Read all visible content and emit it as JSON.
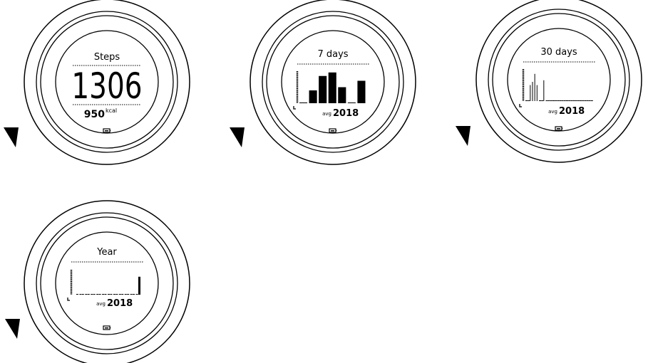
{
  "colors": {
    "ink": "#000000",
    "background": "#ffffff"
  },
  "watches": [
    {
      "screen": "steps",
      "title": "Steps",
      "value": "1306",
      "sub_value": "950",
      "sub_unit": "kcal",
      "icon": "battery-icon"
    },
    {
      "screen": "chart",
      "title": "7 days",
      "avg_label": "avg",
      "avg_value": "2018",
      "icon": "battery-icon",
      "chart_data": {
        "type": "bar",
        "values": [
          0,
          0.4,
          0.85,
          0.96,
          0.5,
          0,
          0.7
        ]
      }
    },
    {
      "screen": "chart",
      "title": "30 days",
      "avg_label": "avg",
      "avg_value": "2018",
      "icon": "battery-icon",
      "chart_data": {
        "type": "bar",
        "values": [
          0,
          0,
          0.5,
          0.6,
          0.85,
          0.5,
          0,
          0,
          0.65,
          0,
          0,
          0,
          0,
          0,
          0,
          0,
          0,
          0,
          0,
          0,
          0,
          0,
          0,
          0,
          0,
          0,
          0,
          0,
          0,
          0
        ]
      }
    },
    {
      "screen": "chart",
      "title": "Year",
      "avg_label": "avg",
      "avg_value": "2018",
      "icon": "battery-icon",
      "chart_data": {
        "type": "bar",
        "values": [
          0,
          0,
          0,
          0,
          0,
          0,
          0,
          0,
          0,
          0,
          0,
          0.72
        ]
      }
    }
  ],
  "navigation_arrows": [
    "arrow-down-left-icon",
    "arrow-down-left-icon",
    "arrow-down-left-icon",
    "arrow-down-left-icon"
  ]
}
